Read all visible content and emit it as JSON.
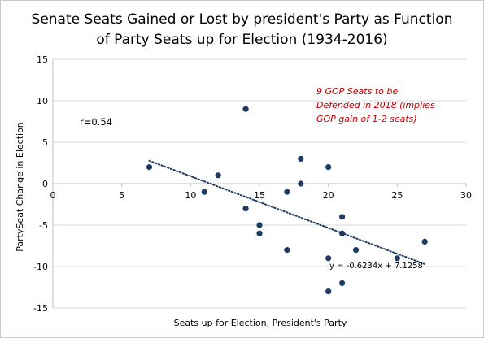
{
  "chart_data": {
    "type": "scatter",
    "title": "Senate Seats Gained or Lost by president's Party as Function\nof Party Seats up for Election (1934-2016)",
    "xlabel": "Seats up for Election, President's Party",
    "ylabel": "PartySeat Change in Election",
    "xlim": [
      0,
      30
    ],
    "ylim": [
      -15,
      15
    ],
    "xticks": [
      0,
      5,
      10,
      15,
      20,
      25,
      30
    ],
    "yticks": [
      -15,
      -10,
      -5,
      0,
      5,
      10,
      15
    ],
    "grid": "horizontal",
    "points": [
      {
        "x": 7,
        "y": 2
      },
      {
        "x": 11,
        "y": -1
      },
      {
        "x": 12,
        "y": 1
      },
      {
        "x": 14,
        "y": 9
      },
      {
        "x": 14,
        "y": -3
      },
      {
        "x": 15,
        "y": -5
      },
      {
        "x": 15,
        "y": -6
      },
      {
        "x": 17,
        "y": -1
      },
      {
        "x": 17,
        "y": -8
      },
      {
        "x": 18,
        "y": 3
      },
      {
        "x": 18,
        "y": 0
      },
      {
        "x": 20,
        "y": 2
      },
      {
        "x": 20,
        "y": -9
      },
      {
        "x": 20,
        "y": -13
      },
      {
        "x": 21,
        "y": -4
      },
      {
        "x": 21,
        "y": -6
      },
      {
        "x": 21,
        "y": -12
      },
      {
        "x": 22,
        "y": -8
      },
      {
        "x": 25,
        "y": -9
      },
      {
        "x": 27,
        "y": -7
      }
    ],
    "trendline": {
      "type": "linear",
      "slope": -0.6234,
      "intercept": 7.1258,
      "x_range": [
        7,
        27
      ],
      "style": "dotted",
      "color": "#1f3b63"
    },
    "annotations": {
      "r_label": "r=0.54",
      "note": "9 GOP Seats to be\nDefended in 2018 (implies\nGOP gain of 1-2 seats)",
      "note_color": "#c00000",
      "equation": "y = -0.6234x + 7.1258"
    },
    "point_color": "#1f3b63"
  }
}
